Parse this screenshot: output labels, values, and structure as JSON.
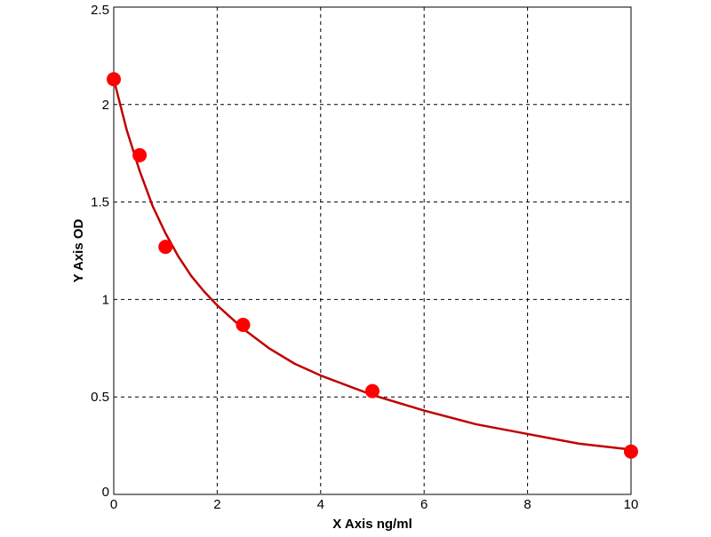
{
  "chart_data": {
    "type": "scatter",
    "title": "",
    "xlabel": "X Axis ng/ml",
    "ylabel": "Y Axis OD",
    "xlim": [
      0,
      10
    ],
    "ylim": [
      0,
      2.5
    ],
    "x_ticks": [
      "0",
      "2",
      "4",
      "6",
      "8",
      "10"
    ],
    "y_ticks": [
      "0",
      "0.5",
      "1",
      "1.5",
      "2",
      "2.5"
    ],
    "grid": true,
    "legend": "none",
    "series": [
      {
        "type": "scatter",
        "color": "#ff0000",
        "points": [
          {
            "x": 0,
            "y": 2.13
          },
          {
            "x": 0.5,
            "y": 1.74
          },
          {
            "x": 1,
            "y": 1.27
          },
          {
            "x": 2.5,
            "y": 0.87
          },
          {
            "x": 5,
            "y": 0.53
          },
          {
            "x": 10,
            "y": 0.22
          }
        ]
      },
      {
        "type": "line",
        "color": "#c00000",
        "curve": {
          "x": [
            0,
            0.25,
            0.5,
            0.75,
            1,
            1.25,
            1.5,
            1.75,
            2,
            2.5,
            3,
            3.5,
            4,
            4.5,
            5,
            6,
            7,
            8,
            9,
            10
          ],
          "y": [
            2.13,
            1.87,
            1.66,
            1.48,
            1.34,
            1.22,
            1.12,
            1.04,
            0.97,
            0.85,
            0.75,
            0.67,
            0.61,
            0.56,
            0.51,
            0.43,
            0.36,
            0.31,
            0.26,
            0.23
          ]
        }
      }
    ]
  }
}
